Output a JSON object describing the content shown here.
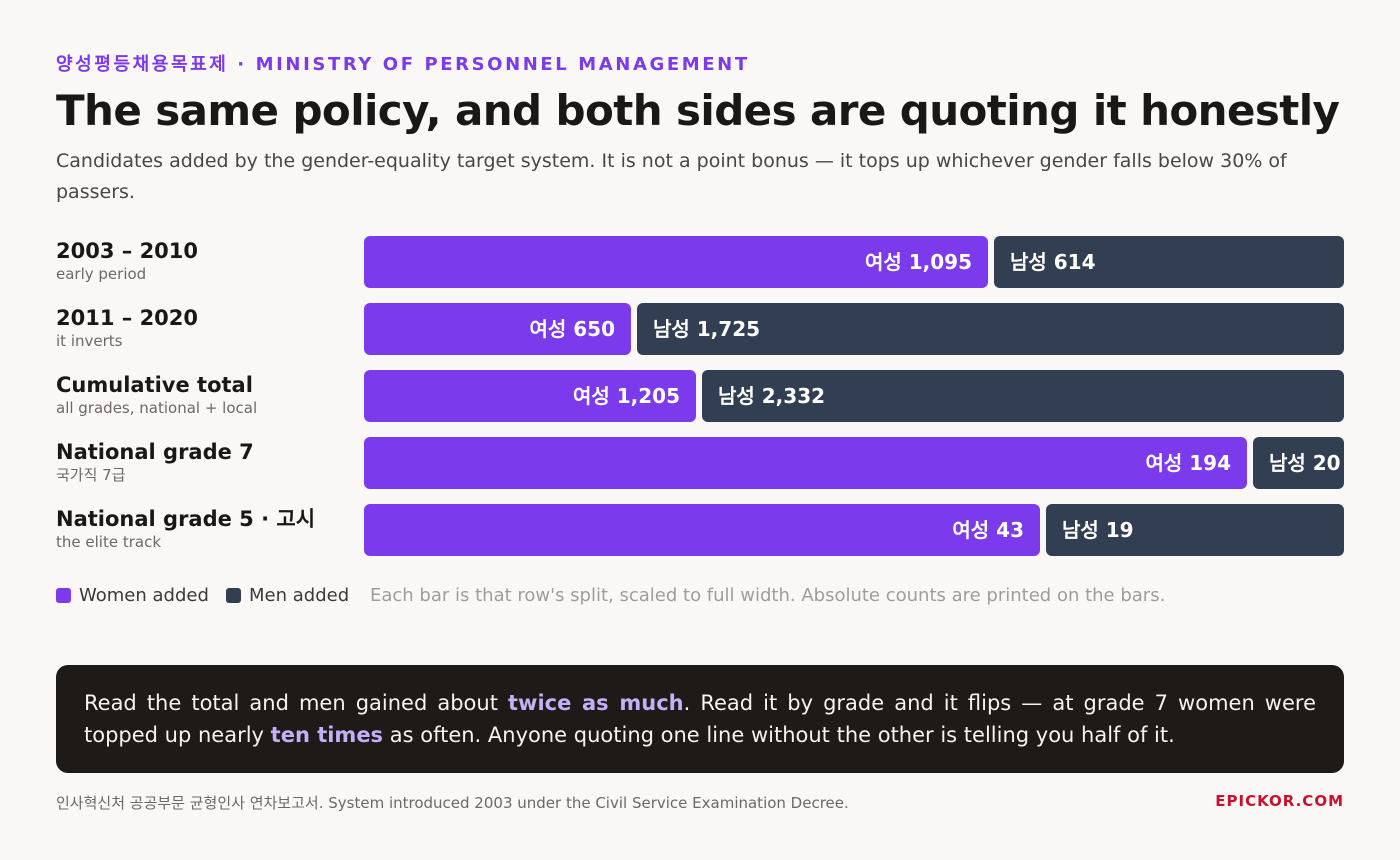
{
  "header": {
    "kicker": "양성평등채용목표제 · MINISTRY OF PERSONNEL MANAGEMENT",
    "title": "The same policy, and both sides are quoting it honestly",
    "subtitle": "Candidates added by the gender-equality target system. It is not a point bonus — it tops up whichever gender falls below 30% of passers."
  },
  "colors": {
    "women": "#7c3aed",
    "men": "#323f52",
    "accent": "#7c3aed",
    "brand": "#c8102e"
  },
  "chart_data": {
    "type": "bar",
    "orientation": "horizontal",
    "stacked": true,
    "normalized": true,
    "categories": [
      "2003 – 2010",
      "2011 – 2020",
      "Cumulative total",
      "National grade 7",
      "National grade 5 · 고시"
    ],
    "category_notes": [
      "early period",
      "it inverts",
      "all grades, national + local",
      "국가직 7급",
      "the elite track"
    ],
    "series": [
      {
        "name": "Women added",
        "prefix": "여성",
        "values": [
          1095,
          650,
          1205,
          194,
          43
        ]
      },
      {
        "name": "Men added",
        "prefix": "남성",
        "values": [
          614,
          1725,
          2332,
          20,
          19
        ]
      }
    ],
    "value_labels": {
      "women": [
        "여성 1,095",
        "여성 650",
        "여성 1,205",
        "여성 194",
        "여성 43"
      ],
      "men": [
        "남성 614",
        "남성 1,725",
        "남성 2,332",
        "남성 20",
        "남성 19"
      ]
    },
    "legend": [
      "Women added",
      "Men added"
    ],
    "legend_position": "bottom-left",
    "note": "Each bar is that row's split, scaled to full width. Absolute counts are printed on the bars."
  },
  "callout": {
    "part1": "Read the total and men gained about ",
    "hl1": "twice as much",
    "part2": ". Read it by grade and it flips — at grade 7 women were topped up nearly ",
    "hl2": "ten times",
    "part3": " as often. Anyone quoting one line without the other is telling you half of it."
  },
  "footer": {
    "source": "인사혁신처 공공부문 균형인사 연차보고서. System introduced 2003 under the Civil Service Examination Decree.",
    "brand": "EPICKOR.COM"
  }
}
